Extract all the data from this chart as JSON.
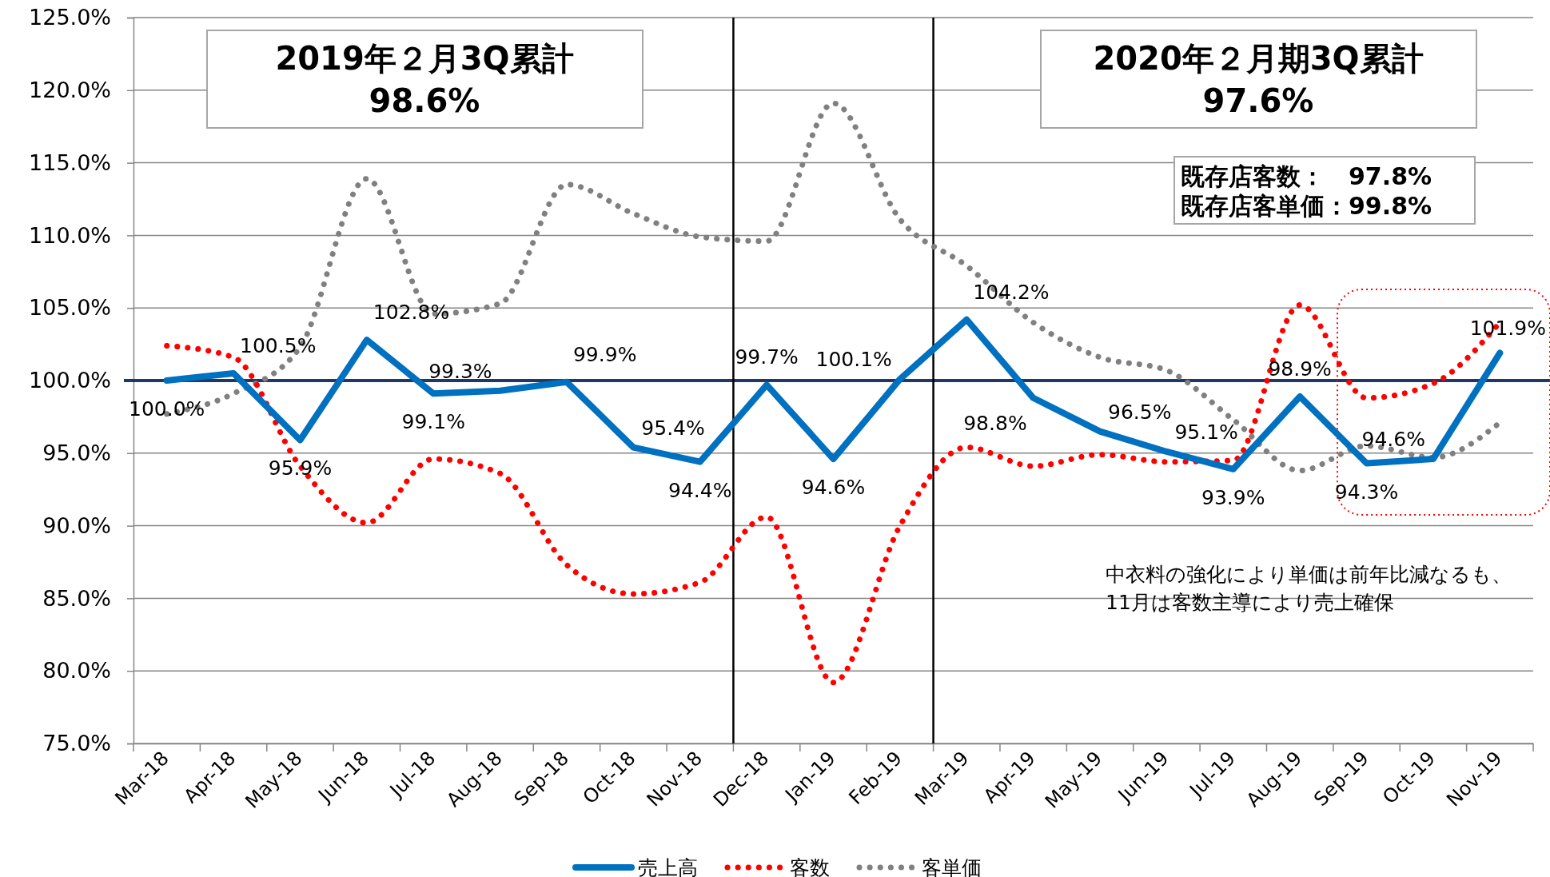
{
  "chart_data": {
    "type": "line",
    "categories": [
      "Mar-18",
      "Apr-18",
      "May-18",
      "Jun-18",
      "Jul-18",
      "Aug-18",
      "Sep-18",
      "Oct-18",
      "Nov-18",
      "Dec-18",
      "Jan-19",
      "Feb-19",
      "Mar-19",
      "Apr-19",
      "May-19",
      "Jun-19",
      "Jul-19",
      "Aug-19",
      "Sep-19",
      "Oct-19",
      "Nov-19"
    ],
    "series": [
      {
        "name": "売上高",
        "color": "#0070c0",
        "line_style": "solid",
        "values": [
          100.0,
          100.5,
          95.9,
          102.8,
          99.1,
          99.3,
          99.9,
          95.4,
          94.4,
          99.7,
          94.6,
          100.1,
          104.2,
          98.8,
          96.5,
          95.1,
          93.9,
          98.9,
          94.3,
          94.6,
          101.9
        ],
        "value_labels": [
          "100.0%",
          "100.5%",
          "95.9%",
          "102.8%",
          "99.1%",
          "99.3%",
          "99.9%",
          "95.4%",
          "94.4%",
          "99.7%",
          "94.6%",
          "100.1%",
          "104.2%",
          "98.8%",
          "96.5%",
          "95.1%",
          "93.9%",
          "98.9%",
          "94.3%",
          "94.6%",
          "101.9%"
        ]
      },
      {
        "name": "客数",
        "color": "#ff0000",
        "line_style": "dotted",
        "values": [
          102.4,
          101.6,
          94.1,
          90.2,
          94.6,
          93.6,
          87.3,
          85.3,
          86.1,
          90.6,
          79.2,
          90.0,
          95.4,
          94.1,
          94.9,
          94.4,
          94.5,
          105.2,
          98.8,
          99.8,
          104.0
        ]
      },
      {
        "name": "客単価",
        "color": "#808080",
        "line_style": "dotted",
        "values": [
          97.7,
          99.1,
          102.3,
          113.9,
          104.6,
          105.3,
          113.5,
          111.5,
          109.9,
          109.6,
          119.1,
          111.1,
          107.9,
          104.0,
          101.6,
          100.7,
          97.3,
          93.8,
          95.5,
          94.7,
          97.1
        ]
      }
    ],
    "ylim": [
      75,
      125
    ],
    "yticks": [
      {
        "value": 75,
        "label": "75.0%"
      },
      {
        "value": 80,
        "label": "80.0%"
      },
      {
        "value": 85,
        "label": "85.0%"
      },
      {
        "value": 90,
        "label": "90.0%"
      },
      {
        "value": 95,
        "label": "95.0%"
      },
      {
        "value": 100,
        "label": "100.0%"
      },
      {
        "value": 105,
        "label": "105.0%"
      },
      {
        "value": 110,
        "label": "110.0%"
      },
      {
        "value": 115,
        "label": "115.0%"
      },
      {
        "value": 120,
        "label": "120.0%"
      },
      {
        "value": 125,
        "label": "125.0%"
      }
    ],
    "grid": "y",
    "legend": "bottom",
    "ref_lines": [
      {
        "axis": "y",
        "value": 100,
        "color": "#1f3864"
      }
    ],
    "annotations": [
      "2019年２月3Q累計",
      "98.6%",
      "2020年２月期3Q累計",
      "97.6%",
      "既存店客数：　97.8%",
      "既存店客単価：99.8%",
      "中衣料の強化により単価は前年比減なるも、",
      "11月は客数主導により売上確保"
    ]
  }
}
